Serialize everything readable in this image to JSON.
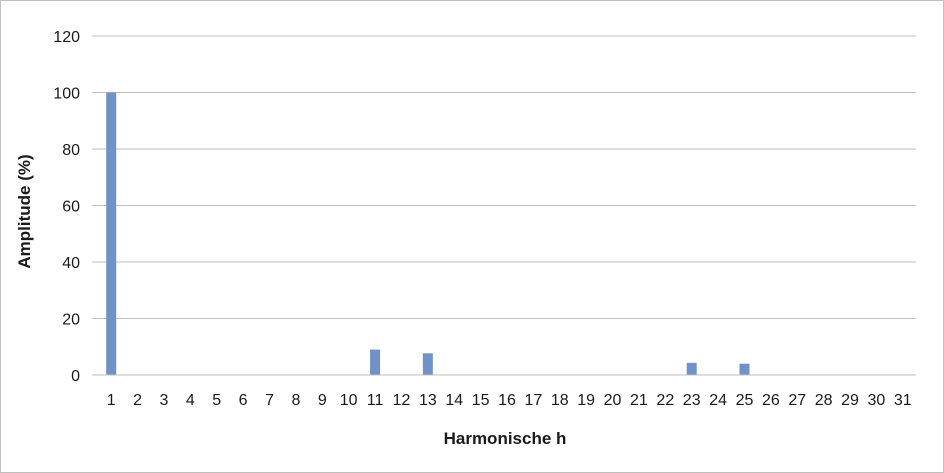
{
  "chart_data": {
    "type": "bar",
    "title": "",
    "xlabel": "Harmonische h",
    "ylabel": "Amplitude (%)",
    "categories": [
      "1",
      "2",
      "3",
      "4",
      "5",
      "6",
      "7",
      "8",
      "9",
      "10",
      "11",
      "12",
      "13",
      "14",
      "15",
      "16",
      "17",
      "18",
      "19",
      "20",
      "21",
      "22",
      "23",
      "24",
      "25",
      "26",
      "27",
      "28",
      "29",
      "30",
      "31"
    ],
    "values": [
      100,
      0,
      0,
      0,
      0,
      0,
      0,
      0,
      0,
      0,
      9,
      0,
      7.7,
      0,
      0,
      0,
      0,
      0,
      0,
      0,
      0,
      0,
      4.3,
      0,
      4,
      0,
      0,
      0,
      0,
      0,
      0
    ],
    "ylim": [
      0,
      120
    ],
    "yticks": [
      0,
      20,
      40,
      60,
      80,
      100,
      120
    ],
    "grid": true,
    "legend": "none",
    "bar_color": "#7092c8",
    "grid_color": "#bfbfbf"
  }
}
